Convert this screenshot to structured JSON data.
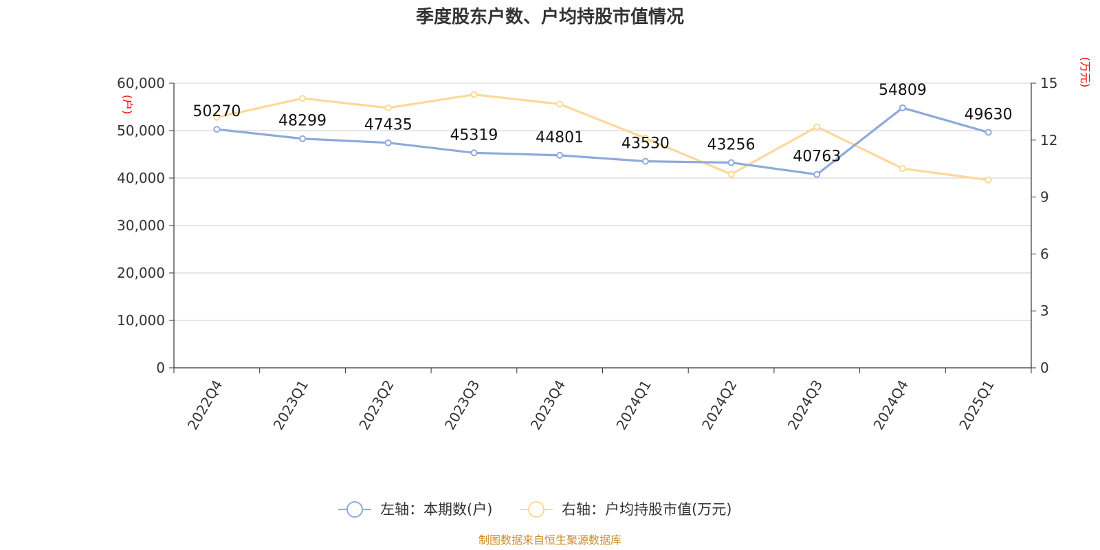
{
  "chart_data": {
    "type": "line",
    "title": "季度股东户数、户均持股市值情况",
    "categories": [
      "2022Q4",
      "2023Q1",
      "2023Q2",
      "2023Q3",
      "2023Q4",
      "2024Q1",
      "2024Q2",
      "2024Q3",
      "2024Q4",
      "2025Q1"
    ],
    "left_axis": {
      "unit": "(户)",
      "ylim": [
        0,
        60000
      ],
      "ticks": [
        "0",
        "10,000",
        "20,000",
        "30,000",
        "40,000",
        "50,000",
        "60,000"
      ]
    },
    "right_axis": {
      "unit": "(万元)",
      "ylim": [
        0,
        15
      ],
      "ticks": [
        "0",
        "3",
        "6",
        "9",
        "12",
        "15"
      ]
    },
    "series": [
      {
        "name": "左轴：本期数(户)",
        "axis": "left",
        "color": "#8eaadb",
        "values": [
          50270,
          48299,
          47435,
          45319,
          44801,
          43530,
          43256,
          40763,
          54809,
          49630
        ],
        "labels": [
          "50270",
          "48299",
          "47435",
          "45319",
          "44801",
          "43530",
          "43256",
          "40763",
          "54809",
          "49630"
        ]
      },
      {
        "name": "右轴：户均持股市值(万元)",
        "axis": "right",
        "color": "#fdd898",
        "values": [
          13.2,
          14.2,
          13.7,
          14.4,
          13.9,
          12.1,
          10.2,
          12.7,
          10.5,
          9.9
        ]
      }
    ],
    "grid": true,
    "legend_position": "bottom-center"
  },
  "source_text": "制图数据来自恒生聚源数据库",
  "colors": {
    "unit_red": "#ff0000",
    "source_orange": "#d08c2a",
    "grid": "#cccccc",
    "axis": "#333333"
  }
}
